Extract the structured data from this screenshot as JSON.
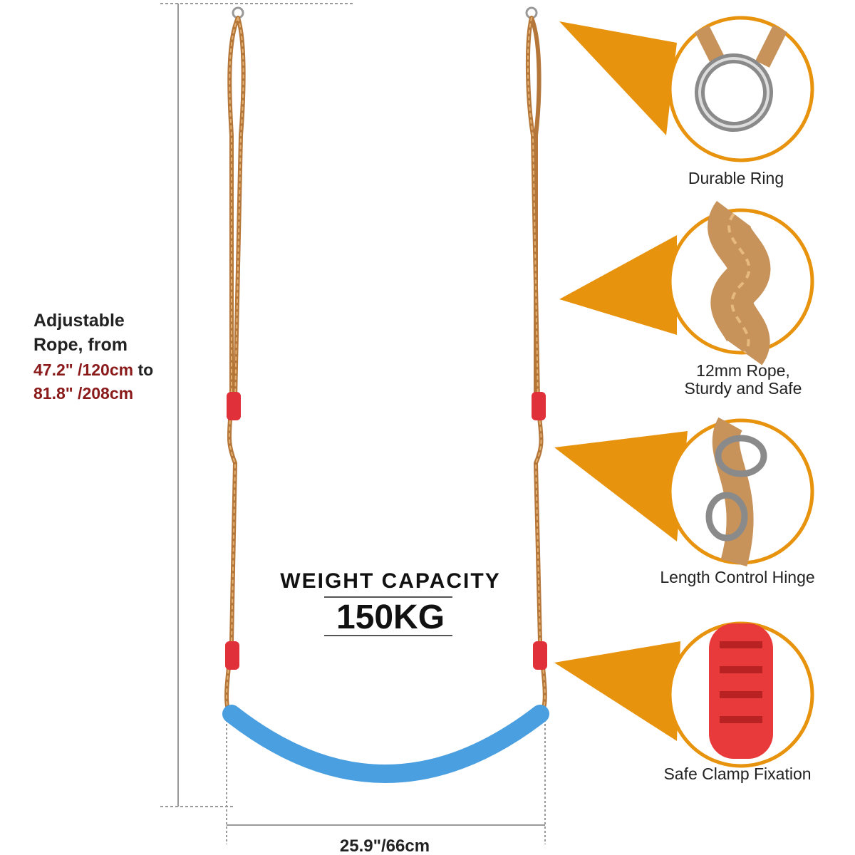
{
  "rope_length": {
    "heading": [
      "Adjustable",
      "Rope, from"
    ],
    "range_min": "47.2\" /120cm",
    "connector": "to",
    "range_max": "81.8\" /208cm"
  },
  "weight_capacity": {
    "label": "WEIGHT CAPACITY",
    "value": "150KG"
  },
  "seat_width": "25.9\"/66cm",
  "features": [
    {
      "label": [
        "Durable Ring"
      ]
    },
    {
      "label": [
        "12mm Rope,",
        "Sturdy and Safe"
      ]
    },
    {
      "label": [
        "Length Control Hinge"
      ]
    },
    {
      "label": [
        "Safe Clamp Fixation"
      ]
    }
  ]
}
